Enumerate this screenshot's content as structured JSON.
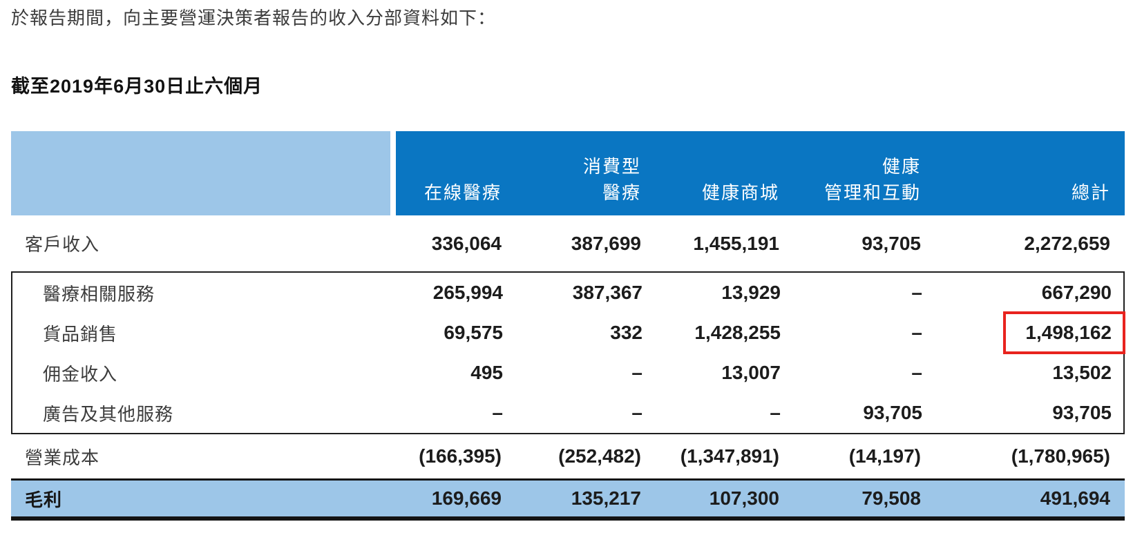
{
  "intro": "於報告期間，向主要營運決策者報告的收入分部資料如下：",
  "period_title": "截至2019年6月30日止六個月",
  "colors": {
    "header_dark_blue": "#0a76c2",
    "header_light_blue": "#9dc6e8",
    "gross_profit_row_blue": "#9dc6e8",
    "highlight_red": "#e8231e"
  },
  "table": {
    "columns": [
      {
        "line1": "",
        "line2": "在線醫療"
      },
      {
        "line1": "消費型",
        "line2": "醫療"
      },
      {
        "line1": "",
        "line2": "健康商城"
      },
      {
        "line1": "健康",
        "line2": "管理和互動"
      },
      {
        "line1": "",
        "line2": "總計"
      }
    ],
    "rows": [
      {
        "label": "客戶收入",
        "values": [
          "336,064",
          "387,699",
          "1,455,191",
          "93,705",
          "2,272,659"
        ]
      },
      {
        "label": "醫療相關服務",
        "values": [
          "265,994",
          "387,367",
          "13,929",
          "–",
          "667,290"
        ]
      },
      {
        "label": "貨品銷售",
        "values": [
          "69,575",
          "332",
          "1,428,255",
          "–",
          "1,498,162"
        ]
      },
      {
        "label": "佣金收入",
        "values": [
          "495",
          "–",
          "13,007",
          "–",
          "13,502"
        ]
      },
      {
        "label": "廣告及其他服務",
        "values": [
          "–",
          "–",
          "–",
          "93,705",
          "93,705"
        ]
      },
      {
        "label": "營業成本",
        "values": [
          "(166,395)",
          "(252,482)",
          "(1,347,891)",
          "(14,197)",
          "(1,780,965)"
        ]
      },
      {
        "label": "毛利",
        "values": [
          "169,669",
          "135,217",
          "107,300",
          "79,508",
          "491,694"
        ]
      }
    ],
    "highlighted_value": "1,498,162"
  }
}
